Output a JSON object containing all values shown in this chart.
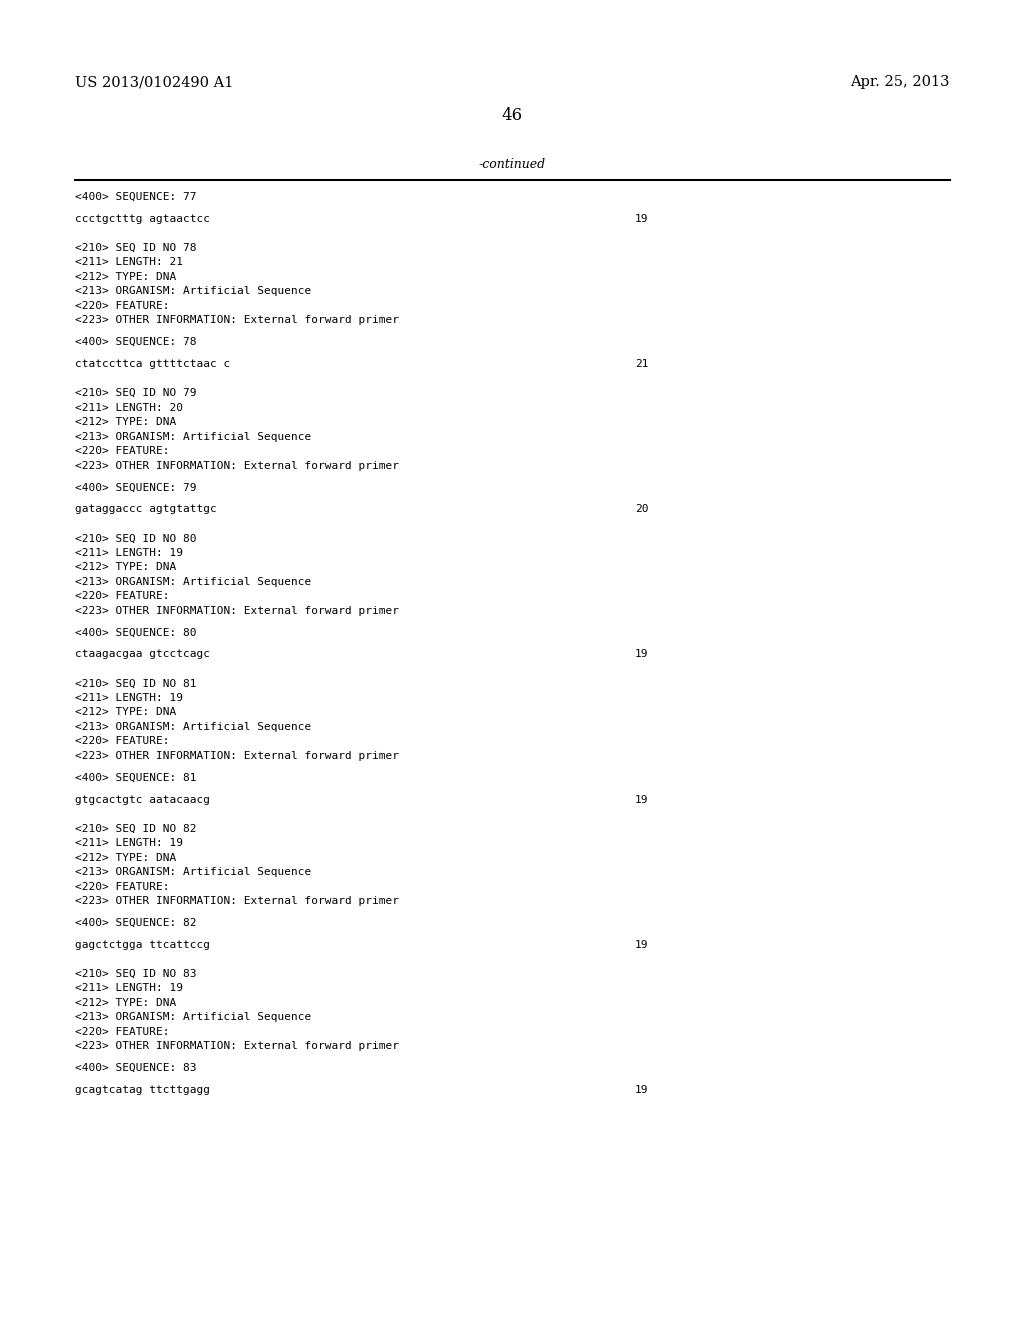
{
  "patent_number": "US 2013/0102490 A1",
  "date": "Apr. 25, 2013",
  "page_number": "46",
  "continued_text": "-continued",
  "background_color": "#ffffff",
  "text_color": "#000000",
  "content_lines": [
    {
      "text": "<400> SEQUENCE: 77",
      "right_text": null
    },
    {
      "text": "",
      "right_text": null
    },
    {
      "text": "ccctgctttg agtaactcc",
      "right_text": "19"
    },
    {
      "text": "",
      "right_text": null
    },
    {
      "text": "",
      "right_text": null
    },
    {
      "text": "<210> SEQ ID NO 78",
      "right_text": null
    },
    {
      "text": "<211> LENGTH: 21",
      "right_text": null
    },
    {
      "text": "<212> TYPE: DNA",
      "right_text": null
    },
    {
      "text": "<213> ORGANISM: Artificial Sequence",
      "right_text": null
    },
    {
      "text": "<220> FEATURE:",
      "right_text": null
    },
    {
      "text": "<223> OTHER INFORMATION: External forward primer",
      "right_text": null
    },
    {
      "text": "",
      "right_text": null
    },
    {
      "text": "<400> SEQUENCE: 78",
      "right_text": null
    },
    {
      "text": "",
      "right_text": null
    },
    {
      "text": "ctatccttca gttttctaac c",
      "right_text": "21"
    },
    {
      "text": "",
      "right_text": null
    },
    {
      "text": "",
      "right_text": null
    },
    {
      "text": "<210> SEQ ID NO 79",
      "right_text": null
    },
    {
      "text": "<211> LENGTH: 20",
      "right_text": null
    },
    {
      "text": "<212> TYPE: DNA",
      "right_text": null
    },
    {
      "text": "<213> ORGANISM: Artificial Sequence",
      "right_text": null
    },
    {
      "text": "<220> FEATURE:",
      "right_text": null
    },
    {
      "text": "<223> OTHER INFORMATION: External forward primer",
      "right_text": null
    },
    {
      "text": "",
      "right_text": null
    },
    {
      "text": "<400> SEQUENCE: 79",
      "right_text": null
    },
    {
      "text": "",
      "right_text": null
    },
    {
      "text": "gataggaccc agtgtattgc",
      "right_text": "20"
    },
    {
      "text": "",
      "right_text": null
    },
    {
      "text": "",
      "right_text": null
    },
    {
      "text": "<210> SEQ ID NO 80",
      "right_text": null
    },
    {
      "text": "<211> LENGTH: 19",
      "right_text": null
    },
    {
      "text": "<212> TYPE: DNA",
      "right_text": null
    },
    {
      "text": "<213> ORGANISM: Artificial Sequence",
      "right_text": null
    },
    {
      "text": "<220> FEATURE:",
      "right_text": null
    },
    {
      "text": "<223> OTHER INFORMATION: External forward primer",
      "right_text": null
    },
    {
      "text": "",
      "right_text": null
    },
    {
      "text": "<400> SEQUENCE: 80",
      "right_text": null
    },
    {
      "text": "",
      "right_text": null
    },
    {
      "text": "ctaagacgaa gtcctcagc",
      "right_text": "19"
    },
    {
      "text": "",
      "right_text": null
    },
    {
      "text": "",
      "right_text": null
    },
    {
      "text": "<210> SEQ ID NO 81",
      "right_text": null
    },
    {
      "text": "<211> LENGTH: 19",
      "right_text": null
    },
    {
      "text": "<212> TYPE: DNA",
      "right_text": null
    },
    {
      "text": "<213> ORGANISM: Artificial Sequence",
      "right_text": null
    },
    {
      "text": "<220> FEATURE:",
      "right_text": null
    },
    {
      "text": "<223> OTHER INFORMATION: External forward primer",
      "right_text": null
    },
    {
      "text": "",
      "right_text": null
    },
    {
      "text": "<400> SEQUENCE: 81",
      "right_text": null
    },
    {
      "text": "",
      "right_text": null
    },
    {
      "text": "gtgcactgtc aatacaacg",
      "right_text": "19"
    },
    {
      "text": "",
      "right_text": null
    },
    {
      "text": "",
      "right_text": null
    },
    {
      "text": "<210> SEQ ID NO 82",
      "right_text": null
    },
    {
      "text": "<211> LENGTH: 19",
      "right_text": null
    },
    {
      "text": "<212> TYPE: DNA",
      "right_text": null
    },
    {
      "text": "<213> ORGANISM: Artificial Sequence",
      "right_text": null
    },
    {
      "text": "<220> FEATURE:",
      "right_text": null
    },
    {
      "text": "<223> OTHER INFORMATION: External forward primer",
      "right_text": null
    },
    {
      "text": "",
      "right_text": null
    },
    {
      "text": "<400> SEQUENCE: 82",
      "right_text": null
    },
    {
      "text": "",
      "right_text": null
    },
    {
      "text": "gagctctgga ttcattccg",
      "right_text": "19"
    },
    {
      "text": "",
      "right_text": null
    },
    {
      "text": "",
      "right_text": null
    },
    {
      "text": "<210> SEQ ID NO 83",
      "right_text": null
    },
    {
      "text": "<211> LENGTH: 19",
      "right_text": null
    },
    {
      "text": "<212> TYPE: DNA",
      "right_text": null
    },
    {
      "text": "<213> ORGANISM: Artificial Sequence",
      "right_text": null
    },
    {
      "text": "<220> FEATURE:",
      "right_text": null
    },
    {
      "text": "<223> OTHER INFORMATION: External forward primer",
      "right_text": null
    },
    {
      "text": "",
      "right_text": null
    },
    {
      "text": "<400> SEQUENCE: 83",
      "right_text": null
    },
    {
      "text": "",
      "right_text": null
    },
    {
      "text": "gcagtcatag ttcttgagg",
      "right_text": "19"
    }
  ]
}
